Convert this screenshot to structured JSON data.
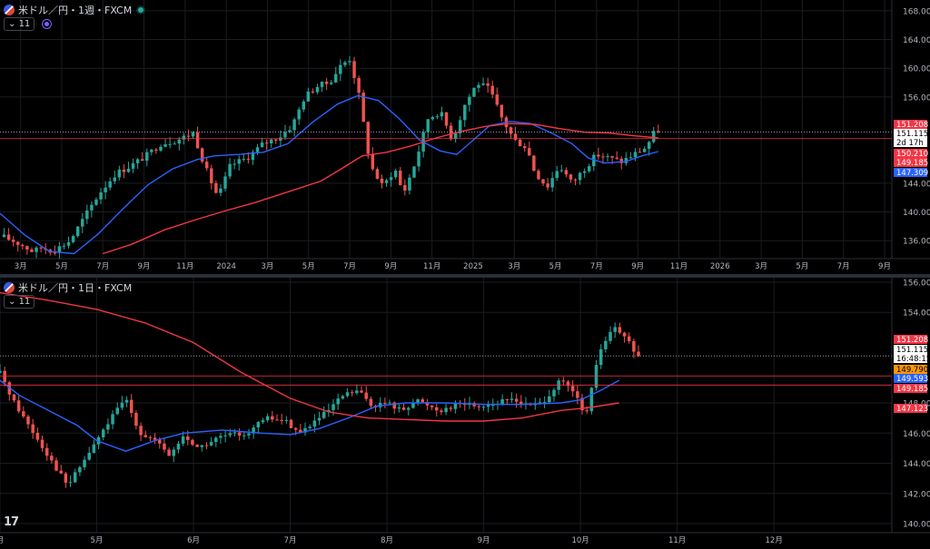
{
  "colors": {
    "bg": "#000000",
    "grid": "#1a1c22",
    "up": "#26a69a",
    "down": "#ef5350",
    "ma_blue": "#2962ff",
    "ma_red": "#f23645",
    "axis_text": "#b2b5be"
  },
  "top": {
    "title": "米ドル／円・1週・FXCM",
    "indicator_count": "11",
    "x_labels": [
      "3月",
      "5月",
      "7月",
      "9月",
      "11月",
      "2024",
      "3月",
      "5月",
      "7月",
      "9月",
      "11月",
      "2025",
      "3月",
      "5月",
      "7月",
      "9月",
      "11月",
      "2026",
      "3月",
      "5月",
      "7月",
      "9月"
    ],
    "y_ticks": [
      "168.000",
      "164.000",
      "160.000",
      "156.000",
      "144.000",
      "140.000",
      "136.000"
    ],
    "price_tags": [
      {
        "value": "151.208",
        "bg": "#f23645",
        "fg": "#ffffff"
      },
      {
        "value": "151.115",
        "bg": "#ffffff",
        "fg": "#000000"
      },
      {
        "value": "2d 17h",
        "bg": "#ffffff",
        "fg": "#000000"
      },
      {
        "value": "150.210",
        "bg": "#f23645",
        "fg": "#ffffff"
      },
      {
        "value": "149.185",
        "bg": "#f23645",
        "fg": "#ffffff"
      },
      {
        "value": "147.309",
        "bg": "#2962ff",
        "fg": "#ffffff"
      }
    ]
  },
  "bottom": {
    "title": "米ドル／円・1日・FXCM",
    "indicator_count": "11",
    "x_labels": [
      "月",
      "5月",
      "6月",
      "7月",
      "8月",
      "9月",
      "10月",
      "11月",
      "12月"
    ],
    "y_ticks": [
      "156.000",
      "154.000",
      "148.000",
      "146.000",
      "144.000",
      "142.000",
      "140.000"
    ],
    "price_tags": [
      {
        "value": "151.208",
        "bg": "#f23645",
        "fg": "#ffffff"
      },
      {
        "value": "151.115",
        "bg": "#ffffff",
        "fg": "#000000"
      },
      {
        "value": "16:48:15",
        "bg": "#ffffff",
        "fg": "#000000"
      },
      {
        "value": "149.790",
        "bg": "#ff9800",
        "fg": "#000000"
      },
      {
        "value": "149.593",
        "bg": "#2962ff",
        "fg": "#ffffff"
      },
      {
        "value": "149.185",
        "bg": "#f23645",
        "fg": "#ffffff"
      },
      {
        "value": "147.123",
        "bg": "#f23645",
        "fg": "#ffffff"
      }
    ]
  },
  "logo": "17",
  "chart_data": [
    {
      "type": "candlestick",
      "title": "米ドル／円・1週・FXCM",
      "ylim": [
        133.5,
        169.5
      ],
      "x_range": [
        0,
        21.5
      ],
      "x_ticks": [
        0.5,
        1.5,
        2.5,
        3.5,
        4.5,
        5.5,
        6.5,
        7.5,
        8.5,
        9.5,
        10.5,
        11.5,
        12.5,
        13.5,
        14.5,
        15.5,
        16.5,
        17.5,
        18.5,
        19.5,
        20.5,
        21.5
      ],
      "y_tick_values": [
        168,
        164,
        160,
        156,
        144,
        140,
        136
      ],
      "price_lines": [
        {
          "y": 151.115,
          "style": "dotted"
        },
        {
          "y": 150.21,
          "style": "solid"
        }
      ],
      "anchors": [
        [
          0.1,
          136.5
        ],
        [
          0.5,
          135.5
        ],
        [
          0.8,
          134.5
        ],
        [
          1.0,
          135.0
        ],
        [
          1.3,
          134.6
        ],
        [
          1.7,
          136.0
        ],
        [
          2.0,
          138.8
        ],
        [
          2.4,
          142.5
        ],
        [
          2.8,
          145.3
        ],
        [
          3.2,
          146.5
        ],
        [
          3.6,
          148.0
        ],
        [
          3.9,
          149.5
        ],
        [
          4.3,
          150.0
        ],
        [
          4.7,
          151.0
        ],
        [
          5.0,
          146.0
        ],
        [
          5.3,
          142.0
        ],
        [
          5.6,
          146.5
        ],
        [
          6.0,
          147.5
        ],
        [
          6.4,
          149.5
        ],
        [
          6.8,
          150.5
        ],
        [
          7.1,
          152.0
        ],
        [
          7.4,
          156.0
        ],
        [
          7.7,
          157.5
        ],
        [
          8.0,
          158.0
        ],
        [
          8.3,
          160.5
        ],
        [
          8.5,
          161.3
        ],
        [
          8.7,
          157.0
        ],
        [
          9.0,
          146.5
        ],
        [
          9.3,
          143.5
        ],
        [
          9.6,
          146.0
        ],
        [
          9.8,
          142.5
        ],
        [
          10.1,
          147.0
        ],
        [
          10.4,
          153.0
        ],
        [
          10.7,
          154.0
        ],
        [
          11.0,
          150.0
        ],
        [
          11.3,
          155.0
        ],
        [
          11.6,
          158.0
        ],
        [
          11.9,
          157.0
        ],
        [
          12.2,
          153.0
        ],
        [
          12.5,
          150.0
        ],
        [
          12.8,
          149.0
        ],
        [
          13.0,
          145.5
        ],
        [
          13.3,
          143.5
        ],
        [
          13.6,
          146.5
        ],
        [
          13.9,
          144.0
        ],
        [
          14.2,
          146.0
        ],
        [
          14.5,
          148.0
        ],
        [
          14.8,
          147.5
        ],
        [
          15.1,
          147.0
        ],
        [
          15.4,
          148.0
        ],
        [
          15.7,
          149.0
        ],
        [
          15.9,
          151.0
        ],
        [
          16.0,
          151.1
        ]
      ],
      "series": [
        {
          "name": "",
          "color": "#2962ff",
          "points": [
            [
              0,
              139.8
            ],
            [
              0.6,
              136.8
            ],
            [
              1.2,
              134.5
            ],
            [
              1.8,
              134.2
            ],
            [
              2.4,
              137.0
            ],
            [
              3.0,
              140.5
            ],
            [
              3.6,
              143.8
            ],
            [
              4.2,
              146.0
            ],
            [
              4.8,
              147.3
            ],
            [
              5.2,
              147.8
            ],
            [
              5.8,
              148.0
            ],
            [
              6.4,
              148.3
            ],
            [
              7.0,
              149.5
            ],
            [
              7.6,
              152.5
            ],
            [
              8.2,
              155.0
            ],
            [
              8.7,
              156.2
            ],
            [
              9.2,
              155.5
            ],
            [
              9.7,
              153.0
            ],
            [
              10.2,
              150.0
            ],
            [
              10.7,
              148.5
            ],
            [
              11.1,
              148.0
            ],
            [
              11.5,
              150.0
            ],
            [
              11.9,
              152.0
            ],
            [
              12.4,
              152.6
            ],
            [
              12.9,
              152.3
            ],
            [
              13.4,
              151.0
            ],
            [
              13.9,
              149.5
            ],
            [
              14.3,
              147.5
            ],
            [
              14.7,
              146.8
            ],
            [
              15.2,
              147.0
            ],
            [
              15.6,
              147.8
            ],
            [
              16.0,
              148.4
            ]
          ]
        },
        {
          "name": "",
          "color": "#f23645",
          "points": [
            [
              2.5,
              134.2
            ],
            [
              3.2,
              135.5
            ],
            [
              4.0,
              137.5
            ],
            [
              4.8,
              139.0
            ],
            [
              5.5,
              140.2
            ],
            [
              6.2,
              141.3
            ],
            [
              7.0,
              142.8
            ],
            [
              7.8,
              144.3
            ],
            [
              8.3,
              146.0
            ],
            [
              8.8,
              147.8
            ],
            [
              9.4,
              148.3
            ],
            [
              10.0,
              149.2
            ],
            [
              10.6,
              150.3
            ],
            [
              11.2,
              151.2
            ],
            [
              11.8,
              151.9
            ],
            [
              12.4,
              152.3
            ],
            [
              13.0,
              152.2
            ],
            [
              13.6,
              151.6
            ],
            [
              14.2,
              151.1
            ],
            [
              14.8,
              151.0
            ],
            [
              15.4,
              150.6
            ],
            [
              16.0,
              150.3
            ]
          ]
        }
      ]
    },
    {
      "type": "candlestick",
      "title": "米ドル／円・1日・FXCM",
      "ylim": [
        139.4,
        156.3
      ],
      "x_range": [
        0,
        9.2
      ],
      "x_ticks": [
        0.0,
        1.0,
        2.0,
        3.0,
        4.0,
        5.0,
        6.0,
        7.0,
        8.0
      ],
      "y_tick_values": [
        156,
        154,
        148,
        146,
        144,
        142,
        140
      ],
      "price_lines": [
        {
          "y": 151.115,
          "style": "dotted"
        },
        {
          "y": 149.79,
          "style": "solid"
        },
        {
          "y": 149.185,
          "style": "solid"
        }
      ],
      "anchors": [
        [
          0.0,
          150.0
        ],
        [
          0.15,
          148.0
        ],
        [
          0.35,
          146.0
        ],
        [
          0.55,
          144.0
        ],
        [
          0.7,
          142.5
        ],
        [
          0.85,
          144.0
        ],
        [
          1.0,
          145.5
        ],
        [
          1.15,
          147.0
        ],
        [
          1.3,
          148.3
        ],
        [
          1.45,
          146.0
        ],
        [
          1.6,
          145.5
        ],
        [
          1.75,
          144.5
        ],
        [
          1.9,
          145.8
        ],
        [
          2.05,
          145.0
        ],
        [
          2.3,
          145.8
        ],
        [
          2.55,
          146.0
        ],
        [
          2.75,
          147.0
        ],
        [
          2.95,
          146.8
        ],
        [
          3.1,
          146.0
        ],
        [
          3.2,
          146.5
        ],
        [
          3.4,
          147.5
        ],
        [
          3.55,
          148.5
        ],
        [
          3.7,
          148.8
        ],
        [
          3.85,
          147.8
        ],
        [
          4.0,
          148.0
        ],
        [
          4.15,
          147.5
        ],
        [
          4.3,
          148.2
        ],
        [
          4.55,
          147.5
        ],
        [
          4.75,
          148.0
        ],
        [
          4.95,
          147.8
        ],
        [
          5.15,
          148.0
        ],
        [
          5.3,
          148.3
        ],
        [
          5.45,
          147.8
        ],
        [
          5.6,
          148.0
        ],
        [
          5.8,
          149.5
        ],
        [
          5.95,
          148.5
        ],
        [
          6.05,
          147.0
        ],
        [
          6.2,
          151.5
        ],
        [
          6.35,
          153.0
        ],
        [
          6.5,
          152.0
        ],
        [
          6.6,
          151.1
        ]
      ],
      "series": [
        {
          "name": "",
          "color": "#2962ff",
          "points": [
            [
              0.0,
              149.5
            ],
            [
              0.2,
              148.5
            ],
            [
              0.5,
              147.5
            ],
            [
              0.8,
              146.5
            ],
            [
              1.0,
              145.5
            ],
            [
              1.3,
              144.8
            ],
            [
              1.6,
              145.5
            ],
            [
              1.9,
              146.0
            ],
            [
              2.3,
              146.2
            ],
            [
              2.7,
              146.0
            ],
            [
              3.0,
              145.9
            ],
            [
              3.3,
              146.3
            ],
            [
              3.6,
              147.0
            ],
            [
              3.9,
              147.8
            ],
            [
              4.2,
              148.0
            ],
            [
              4.6,
              148.0
            ],
            [
              5.0,
              147.9
            ],
            [
              5.4,
              147.9
            ],
            [
              5.8,
              148.0
            ],
            [
              6.0,
              148.2
            ],
            [
              6.2,
              148.8
            ],
            [
              6.4,
              149.5
            ]
          ]
        },
        {
          "name": "",
          "color": "#f23645",
          "points": [
            [
              0.0,
              155.3
            ],
            [
              0.5,
              154.8
            ],
            [
              1.0,
              154.2
            ],
            [
              1.5,
              153.3
            ],
            [
              2.0,
              152.0
            ],
            [
              2.5,
              150.0
            ],
            [
              3.0,
              148.3
            ],
            [
              3.4,
              147.4
            ],
            [
              3.8,
              147.0
            ],
            [
              4.2,
              146.9
            ],
            [
              4.6,
              146.8
            ],
            [
              5.0,
              146.8
            ],
            [
              5.4,
              147.0
            ],
            [
              5.8,
              147.5
            ],
            [
              6.1,
              147.7
            ],
            [
              6.4,
              148.0
            ]
          ]
        }
      ]
    }
  ]
}
